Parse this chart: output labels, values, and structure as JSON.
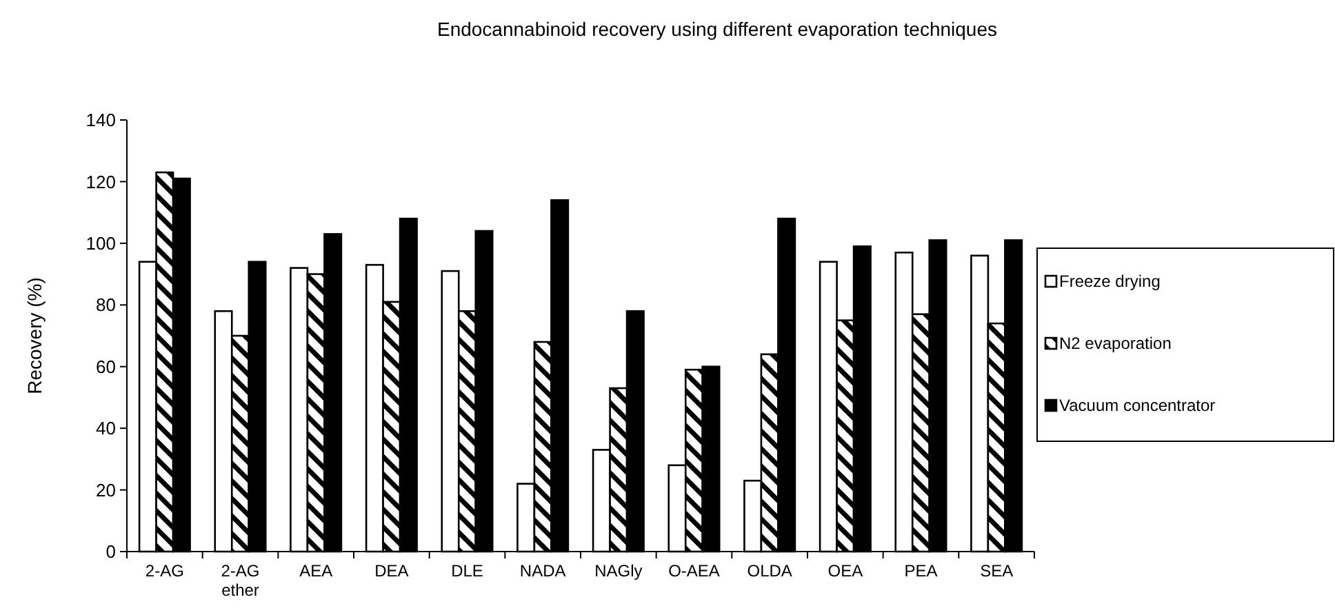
{
  "chart_data": {
    "type": "bar",
    "title": "Endocannabinoid recovery using different evaporation techniques",
    "ylabel": "Recovery (%)",
    "categories": [
      "2-AG",
      "2-AG ether",
      "AEA",
      "DEA",
      "DLE",
      "NADA",
      "NAGly",
      "O-AEA",
      "OLDA",
      "OEA",
      "PEA",
      "SEA"
    ],
    "series": [
      {
        "name": "Freeze drying",
        "color": "#ffffff",
        "values": [
          94,
          78,
          92,
          93,
          91,
          22,
          33,
          28,
          23,
          94,
          97,
          96
        ]
      },
      {
        "name": "N2 evaporation",
        "color": "#000000",
        "values": [
          123,
          70,
          90,
          81,
          78,
          68,
          53,
          59,
          64,
          75,
          77,
          74
        ]
      },
      {
        "name": "Vacuum concentrator",
        "color": "#000000",
        "values": [
          121,
          94,
          103,
          108,
          104,
          114,
          78,
          60,
          108,
          99,
          101,
          101
        ]
      }
    ],
    "ylim": [
      0,
      140
    ],
    "yticks": [
      0,
      20,
      40,
      60,
      80,
      100,
      120,
      140
    ],
    "grid": false,
    "legend": "right"
  }
}
